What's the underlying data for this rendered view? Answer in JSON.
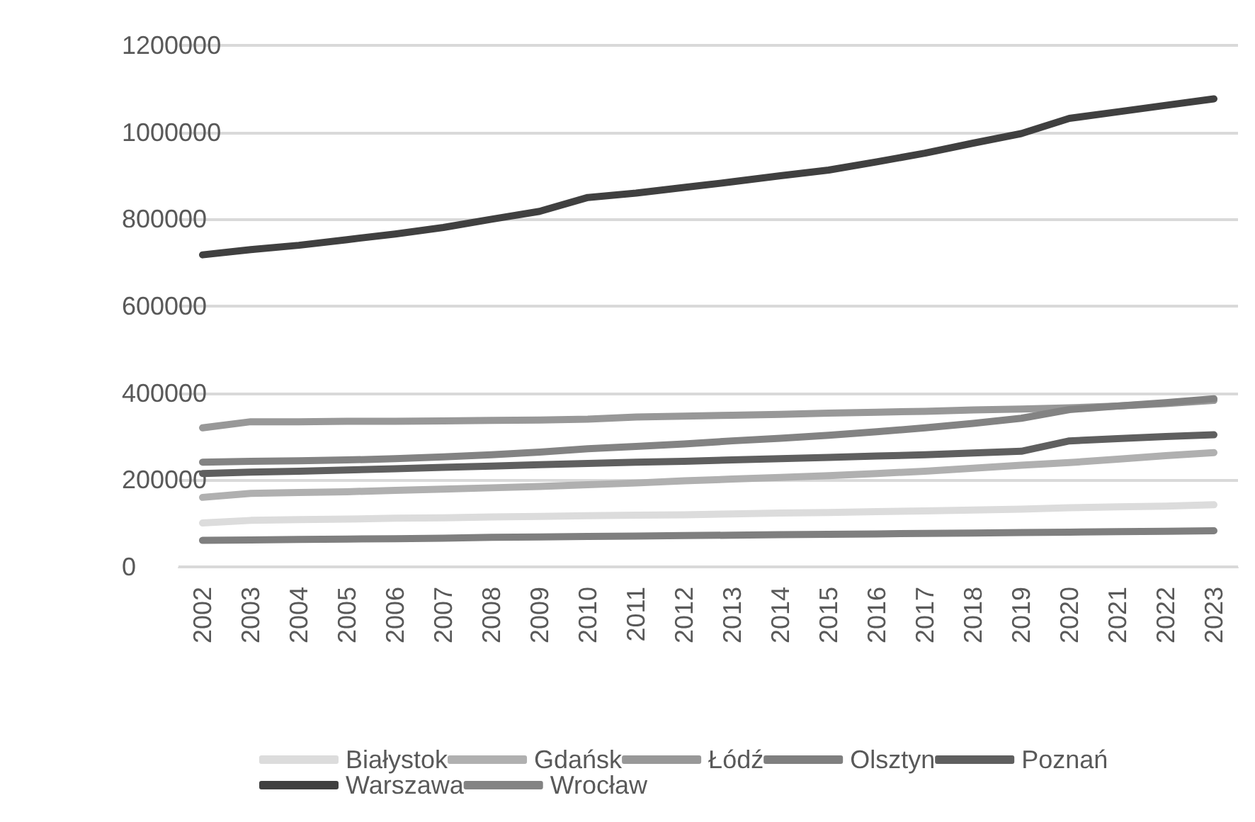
{
  "chart_data": {
    "type": "line",
    "categories": [
      "2002",
      "2003",
      "2004",
      "2005",
      "2006",
      "2007",
      "2008",
      "2009",
      "2010",
      "2011",
      "2012",
      "2013",
      "2014",
      "2015",
      "2016",
      "2017",
      "2018",
      "2019",
      "2020",
      "2021",
      "2022",
      "2023"
    ],
    "series": [
      {
        "name": "Białystok",
        "color": "#dcdcdc",
        "values": [
          101000,
          107000,
          109000,
          110000,
          112000,
          113000,
          115000,
          116000,
          118000,
          119000,
          120000,
          122000,
          124000,
          125000,
          127000,
          129000,
          131000,
          133000,
          136000,
          138000,
          140000,
          143000
        ]
      },
      {
        "name": "Gdańsk",
        "color": "#b0b0b0",
        "values": [
          160000,
          169000,
          171000,
          173000,
          176000,
          179000,
          182000,
          185000,
          189000,
          193000,
          198000,
          202000,
          206000,
          210000,
          215000,
          220000,
          227000,
          234000,
          240000,
          248000,
          256000,
          263000
        ]
      },
      {
        "name": "Łódź",
        "color": "#989898",
        "values": [
          320000,
          334000,
          334000,
          335000,
          335000,
          336000,
          337000,
          338000,
          340000,
          345000,
          347000,
          349000,
          351000,
          354000,
          356000,
          358000,
          361000,
          363000,
          366000,
          370000,
          376000,
          383000
        ]
      },
      {
        "name": "Olsztyn",
        "color": "#7f7f7f",
        "values": [
          61000,
          62000,
          63000,
          64000,
          65000,
          66000,
          68000,
          69000,
          70000,
          71000,
          72000,
          73000,
          74000,
          75000,
          76000,
          77000,
          78000,
          79000,
          80000,
          81000,
          82000,
          83000
        ]
      },
      {
        "name": "Poznań",
        "color": "#5f5f5f",
        "values": [
          215000,
          218000,
          220000,
          223000,
          226000,
          229000,
          232000,
          235000,
          238000,
          241000,
          243000,
          246000,
          249000,
          252000,
          255000,
          258000,
          262000,
          266000,
          290000,
          295000,
          300000,
          304000
        ]
      },
      {
        "name": "Warszawa",
        "color": "#404040",
        "values": [
          718000,
          730000,
          740000,
          753000,
          766000,
          781000,
          800000,
          818000,
          850000,
          860000,
          873000,
          886000,
          900000,
          913000,
          932000,
          952000,
          975000,
          997000,
          1032000,
          1047000,
          1062000,
          1077000
        ]
      },
      {
        "name": "Wrocław",
        "color": "#838383",
        "values": [
          241000,
          243000,
          244000,
          246000,
          249000,
          253000,
          258000,
          264000,
          272000,
          277000,
          283000,
          290000,
          296000,
          303000,
          311000,
          320000,
          330000,
          342000,
          362000,
          370000,
          378000,
          387000
        ]
      }
    ],
    "ylim": [
      0,
      1200000
    ],
    "yticks": [
      0,
      200000,
      400000,
      600000,
      800000,
      1000000,
      1200000
    ],
    "grid": "y",
    "legend": "bottom",
    "marker": "none",
    "line_style": "solid"
  }
}
